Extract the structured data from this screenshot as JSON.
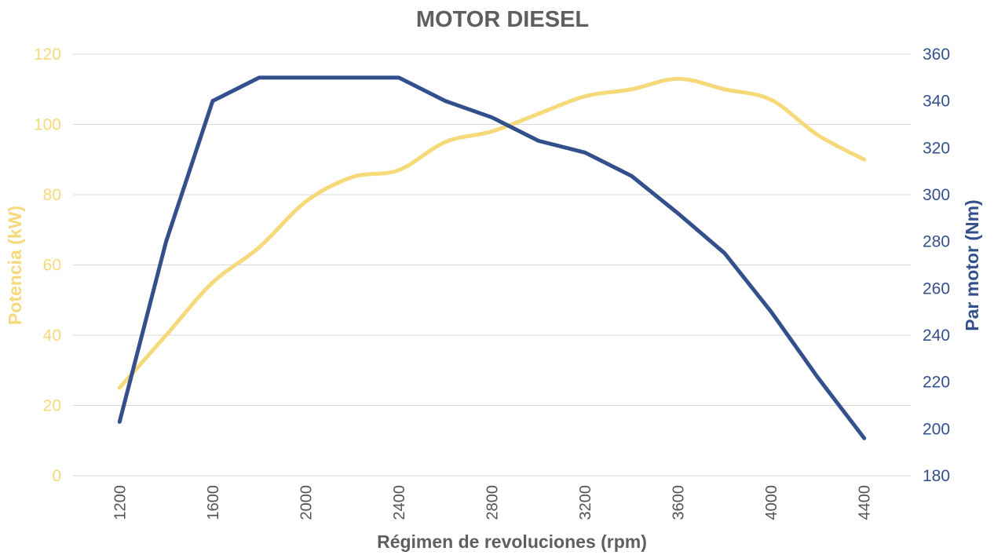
{
  "chart_data": {
    "type": "line",
    "title": "MOTOR DIESEL",
    "xlabel": "Régimen de revoluciones (rpm)",
    "ylabel_left": "Potencia (kW)",
    "ylabel_right": "Par motor (Nm)",
    "x": [
      1200,
      1400,
      1600,
      1800,
      2000,
      2200,
      2400,
      2600,
      2800,
      3000,
      3200,
      3400,
      3600,
      3800,
      4000,
      4200,
      4400
    ],
    "x_tick_labels": [
      "1200",
      "1600",
      "2000",
      "2400",
      "2800",
      "3200",
      "3600",
      "4000",
      "4400"
    ],
    "y_left_ticks": [
      "0",
      "20",
      "40",
      "60",
      "80",
      "100",
      "120"
    ],
    "y_right_ticks": [
      "180",
      "200",
      "220",
      "240",
      "260",
      "280",
      "300",
      "320",
      "340",
      "360"
    ],
    "y_left_range": [
      0,
      120
    ],
    "y_right_range": [
      180,
      360
    ],
    "x_range": [
      1000,
      4600
    ],
    "grid": true,
    "series": [
      {
        "axis": "left",
        "color": "#f5d97a",
        "smooth": true,
        "values": [
          25,
          40,
          55,
          65,
          78,
          85,
          87,
          95,
          98,
          103,
          108,
          110,
          113,
          110,
          107,
          97,
          90
        ]
      },
      {
        "axis": "right",
        "color": "#34508c",
        "smooth": false,
        "values": [
          203,
          280,
          340,
          350,
          350,
          350,
          350,
          340,
          333,
          323,
          318,
          308,
          292,
          275,
          250,
          222,
          196
        ]
      }
    ],
    "colors": {
      "left_axis": "#f5d97a",
      "right_axis": "#34508c",
      "title": "#5f5f5f",
      "x_axis": "#5f5f5f",
      "grid": "#d9d9d9"
    }
  }
}
